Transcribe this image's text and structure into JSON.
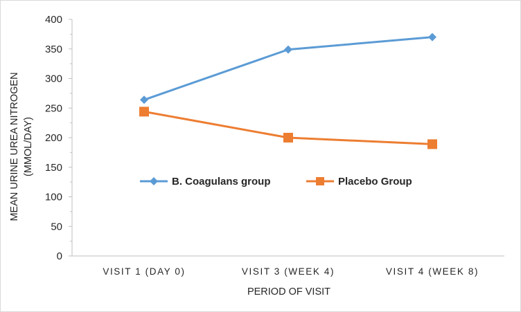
{
  "chart_data": {
    "type": "line",
    "categories": [
      "VISIT 1 (DAY 0)",
      "VISIT 3 (WEEK 4)",
      "VISIT 4 (WEEK 8)"
    ],
    "series": [
      {
        "name": "B. Coagulans group",
        "values": [
          264,
          349,
          370
        ],
        "color": "#5b9bd5",
        "marker": "diamond"
      },
      {
        "name": "Placebo Group",
        "values": [
          244,
          200,
          189
        ],
        "color": "#ed7d31",
        "marker": "square"
      }
    ],
    "title": "",
    "xlabel": "PERIOD OF VISIT",
    "ylabel_lines": [
      "MEAN URINE UREA NITROGEN",
      "(MMOL/DAY)"
    ],
    "ylim": [
      0,
      400
    ],
    "yticks": [
      "0",
      "50",
      "100",
      "150",
      "200",
      "250",
      "300",
      "350",
      "400"
    ],
    "grid": false,
    "legend_position": "center"
  }
}
